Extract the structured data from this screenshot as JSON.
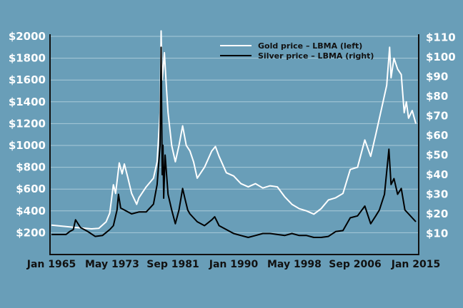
{
  "chart_data": {
    "type": "line",
    "title": "",
    "xlabel": "",
    "x_tick_labels": [
      "Jan 1965",
      "May 1973",
      "Sep 1981",
      "Jan 1990",
      "May 1998",
      "Sep 2006",
      "Jan 2015"
    ],
    "x_tick_values": [
      1965,
      1973.33,
      1981.67,
      1990,
      1998.33,
      2006.67,
      2015
    ],
    "xlim": [
      1965,
      2015
    ],
    "left_axis": {
      "labels": [
        "$200",
        "$400",
        "$600",
        "$800",
        "$1000",
        "$1200",
        "$1400",
        "$1600",
        "$1800",
        "$2000"
      ],
      "values": [
        200,
        400,
        600,
        800,
        1000,
        1200,
        1400,
        1600,
        1800,
        2000
      ],
      "ylim": [
        0,
        2000
      ]
    },
    "right_axis": {
      "labels": [
        "$10",
        "$20",
        "$30",
        "$40",
        "$50",
        "$60",
        "$70",
        "$80",
        "$90",
        "$100",
        "$110"
      ],
      "values": [
        10,
        20,
        30,
        40,
        50,
        60,
        70,
        80,
        90,
        100,
        110
      ],
      "ylim": [
        0,
        110
      ]
    },
    "grid": true,
    "legend_position": "top-center",
    "series": [
      {
        "name": "Gold price – LBMA (left)",
        "axis": "left",
        "color": "#ffffff",
        "x": [
          1965,
          1968,
          1970.5,
          1971.5,
          1972.5,
          1973,
          1973.5,
          1973.8,
          1974.3,
          1974.7,
          1975,
          1975.5,
          1976,
          1976.7,
          1977,
          1978,
          1979,
          1979.5,
          1979.9,
          1980.05,
          1980.2,
          1980.5,
          1980.8,
          1981,
          1981.5,
          1982,
          1982.5,
          1983,
          1983.5,
          1984,
          1984.5,
          1985,
          1986,
          1987,
          1987.5,
          1988,
          1989,
          1990,
          1991,
          1992,
          1993,
          1994,
          1995,
          1996,
          1997,
          1998,
          1999,
          2000,
          2001,
          2002,
          2003,
          2004,
          2005,
          2006,
          2007,
          2008,
          2008.8,
          2009.5,
          2010,
          2010.5,
          2011,
          2011.4,
          2011.6,
          2012,
          2012.5,
          2013,
          2013.4,
          2013.7,
          2014,
          2014.5,
          2015
        ],
        "y": [
          270,
          250,
          235,
          240,
          300,
          380,
          640,
          560,
          840,
          740,
          830,
          700,
          560,
          460,
          520,
          620,
          700,
          850,
          1300,
          2050,
          1600,
          1850,
          1500,
          1300,
          1000,
          850,
          1000,
          1180,
          1000,
          950,
          850,
          700,
          800,
          950,
          990,
          900,
          750,
          720,
          650,
          620,
          650,
          610,
          630,
          620,
          530,
          460,
          420,
          400,
          370,
          420,
          500,
          520,
          560,
          780,
          800,
          1050,
          900,
          1100,
          1250,
          1400,
          1550,
          1900,
          1620,
          1800,
          1700,
          1650,
          1300,
          1400,
          1250,
          1320,
          1200
        ]
      },
      {
        "name": "Silver price – LBMA (right)",
        "axis": "right",
        "color": "#000000",
        "x": [
          1965,
          1967,
          1967.5,
          1968,
          1968.3,
          1969,
          1970,
          1971,
          1972,
          1973,
          1973.5,
          1974,
          1974.2,
          1974.5,
          1975,
          1976,
          1977,
          1978,
          1979,
          1979.5,
          1979.9,
          1980.05,
          1980.2,
          1980.3,
          1980.4,
          1980.6,
          1981,
          1981.5,
          1982,
          1982.5,
          1983,
          1983.3,
          1983.7,
          1984,
          1985,
          1986,
          1987,
          1987.4,
          1988,
          1989,
          1990,
          1991,
          1992,
          1993,
          1994,
          1995,
          1996,
          1997,
          1998,
          1999,
          2000,
          2001,
          2002,
          2003,
          2004,
          2005,
          2006,
          2007,
          2008,
          2008.8,
          2009.5,
          2010,
          2010.7,
          2011.3,
          2011.6,
          2012,
          2012.5,
          2013,
          2013.5,
          2014,
          2014.5,
          2015
        ],
        "y": [
          9.5,
          9.5,
          11,
          12,
          17,
          13,
          11,
          8.5,
          9,
          12,
          14,
          22,
          30,
          23,
          22,
          20,
          21,
          21,
          25,
          35,
          55,
          105,
          40,
          55,
          28,
          50,
          30,
          22,
          15,
          22,
          33,
          28,
          22,
          20,
          16,
          14,
          17,
          18.5,
          14,
          12,
          10,
          9,
          8,
          9,
          10,
          10,
          9.5,
          9,
          10,
          9,
          9,
          8,
          8,
          8.5,
          11,
          11.5,
          18,
          19,
          24,
          15,
          19,
          22,
          30,
          53,
          35,
          38,
          30,
          33,
          22,
          20,
          18,
          16
        ]
      }
    ]
  }
}
